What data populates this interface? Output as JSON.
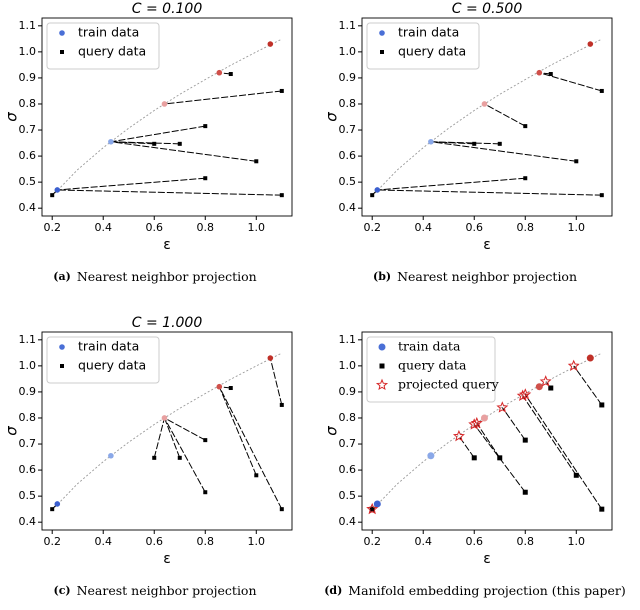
{
  "chart_data": [
    {
      "type": "scatter",
      "title": "C = 0.100",
      "panel": "(a)",
      "caption": "Nearest neighbor projection",
      "x_label": "ε",
      "y_label": "σ",
      "xlim": [
        0.16,
        1.14
      ],
      "ylim": [
        0.37,
        1.13
      ],
      "xticks": [
        0.2,
        0.4,
        0.6,
        0.8,
        {
          "value": 1,
          "label": "1.0"
        }
      ],
      "yticks": [
        0.4,
        0.5,
        0.6,
        0.7,
        0.8,
        0.9,
        {
          "value": 1,
          "label": "1.0"
        },
        1.1
      ],
      "legend": "upper left",
      "link_series": 0,
      "reference_curve": {
        "color": "#999999",
        "x": [
          0.2,
          0.3,
          0.4,
          0.5,
          0.6,
          0.7,
          0.8,
          0.9,
          1.0,
          1.1
        ],
        "values": [
          0.447,
          0.548,
          0.632,
          0.707,
          0.775,
          0.837,
          0.894,
          0.949,
          1.0,
          1.049
        ]
      },
      "series": [
        {
          "name": "train data",
          "marker": "circle",
          "color": "#4a6fd6",
          "point_colors": [
            "#3b5fcf",
            "#8aa8e8",
            "#e8a0a0",
            "#d0504a",
            "#c03028"
          ],
          "x": [
            0.22,
            0.43,
            0.64,
            0.855,
            1.055
          ],
          "values": [
            0.47,
            0.655,
            0.8,
            0.92,
            1.03
          ]
        },
        {
          "name": "query data",
          "marker": "square",
          "color": "#000000",
          "x": [
            0.2,
            0.6,
            0.7,
            0.8,
            0.8,
            0.9,
            1.0,
            1.1,
            1.1
          ],
          "values": [
            0.45,
            0.647,
            0.647,
            0.715,
            0.515,
            0.915,
            0.58,
            0.85,
            0.45
          ],
          "links": [
            0,
            1,
            1,
            1,
            0,
            3,
            1,
            2,
            0
          ]
        }
      ]
    },
    {
      "type": "scatter",
      "title": "C = 0.500",
      "panel": "(b)",
      "caption": "Nearest neighbor projection",
      "x_label": "ε",
      "y_label": "σ",
      "xlim": [
        0.16,
        1.14
      ],
      "ylim": [
        0.37,
        1.13
      ],
      "xticks": [
        0.2,
        0.4,
        0.6,
        0.8,
        {
          "value": 1,
          "label": "1.0"
        }
      ],
      "yticks": [
        0.4,
        0.5,
        0.6,
        0.7,
        0.8,
        0.9,
        {
          "value": 1,
          "label": "1.0"
        },
        1.1
      ],
      "legend": "upper left",
      "link_series": 0,
      "reference_curve": {
        "color": "#999999",
        "x": [
          0.2,
          0.3,
          0.4,
          0.5,
          0.6,
          0.7,
          0.8,
          0.9,
          1.0,
          1.1
        ],
        "values": [
          0.447,
          0.548,
          0.632,
          0.707,
          0.775,
          0.837,
          0.894,
          0.949,
          1.0,
          1.049
        ]
      },
      "series": [
        {
          "name": "train data",
          "marker": "circle",
          "color": "#4a6fd6",
          "point_colors": [
            "#3b5fcf",
            "#8aa8e8",
            "#e8a0a0",
            "#d0504a",
            "#c03028"
          ],
          "x": [
            0.22,
            0.43,
            0.64,
            0.855,
            1.055
          ],
          "values": [
            0.47,
            0.655,
            0.8,
            0.92,
            1.03
          ]
        },
        {
          "name": "query data",
          "marker": "square",
          "color": "#000000",
          "x": [
            0.2,
            0.6,
            0.7,
            0.8,
            0.8,
            0.9,
            1.0,
            1.1,
            1.1
          ],
          "values": [
            0.45,
            0.647,
            0.647,
            0.715,
            0.515,
            0.915,
            0.58,
            0.85,
            0.45
          ],
          "links": [
            0,
            1,
            1,
            2,
            0,
            3,
            1,
            3,
            0
          ]
        }
      ]
    },
    {
      "type": "scatter",
      "title": "C = 1.000",
      "panel": "(c)",
      "caption": "Nearest neighbor projection",
      "x_label": "ε",
      "y_label": "σ",
      "xlim": [
        0.16,
        1.14
      ],
      "ylim": [
        0.37,
        1.13
      ],
      "xticks": [
        0.2,
        0.4,
        0.6,
        0.8,
        {
          "value": 1,
          "label": "1.0"
        }
      ],
      "yticks": [
        0.4,
        0.5,
        0.6,
        0.7,
        0.8,
        0.9,
        {
          "value": 1,
          "label": "1.0"
        },
        1.1
      ],
      "legend": "upper left",
      "link_series": 0,
      "reference_curve": {
        "color": "#999999",
        "x": [
          0.2,
          0.3,
          0.4,
          0.5,
          0.6,
          0.7,
          0.8,
          0.9,
          1.0,
          1.1
        ],
        "values": [
          0.447,
          0.548,
          0.632,
          0.707,
          0.775,
          0.837,
          0.894,
          0.949,
          1.0,
          1.049
        ]
      },
      "series": [
        {
          "name": "train data",
          "marker": "circle",
          "color": "#4a6fd6",
          "point_colors": [
            "#3b5fcf",
            "#8aa8e8",
            "#e8a0a0",
            "#d0504a",
            "#c03028"
          ],
          "x": [
            0.22,
            0.43,
            0.64,
            0.855,
            1.055
          ],
          "values": [
            0.47,
            0.655,
            0.8,
            0.92,
            1.03
          ]
        },
        {
          "name": "query data",
          "marker": "square",
          "color": "#000000",
          "x": [
            0.2,
            0.6,
            0.7,
            0.8,
            0.8,
            0.9,
            1.0,
            1.1,
            1.1
          ],
          "values": [
            0.45,
            0.647,
            0.647,
            0.715,
            0.515,
            0.915,
            0.58,
            0.85,
            0.45
          ],
          "links": [
            0,
            2,
            2,
            2,
            2,
            3,
            3,
            4,
            3
          ]
        }
      ]
    },
    {
      "type": "scatter",
      "panel": "(d)",
      "caption": "Manifold embedding projection (this paper)",
      "x_label": "ε",
      "y_label": "σ",
      "xlim": [
        0.16,
        1.14
      ],
      "ylim": [
        0.37,
        1.13
      ],
      "xticks": [
        0.2,
        0.4,
        0.6,
        0.8,
        {
          "value": 1,
          "label": "1.0"
        }
      ],
      "yticks": [
        0.4,
        0.5,
        0.6,
        0.7,
        0.8,
        0.9,
        {
          "value": 1,
          "label": "1.0"
        },
        1.1
      ],
      "legend": "upper left",
      "link_series": 2,
      "reference_curve": {
        "color": "#999999",
        "x": [
          0.2,
          0.3,
          0.4,
          0.5,
          0.6,
          0.7,
          0.8,
          0.9,
          1.0,
          1.1
        ],
        "values": [
          0.447,
          0.548,
          0.632,
          0.707,
          0.775,
          0.837,
          0.894,
          0.949,
          1.0,
          1.049
        ]
      },
      "series": [
        {
          "name": "train data",
          "marker": "circle",
          "color": "#4a6fd6",
          "point_colors": [
            "#3b5fcf",
            "#8aa8e8",
            "#e8a0a0",
            "#d0504a",
            "#c03028"
          ],
          "x": [
            0.22,
            0.43,
            0.64,
            0.855,
            1.055
          ],
          "values": [
            0.47,
            0.655,
            0.8,
            0.92,
            1.03
          ]
        },
        {
          "name": "query data",
          "marker": "square",
          "color": "#000000",
          "x": [
            0.2,
            0.6,
            0.7,
            0.8,
            0.8,
            0.9,
            1.0,
            1.1,
            1.1
          ],
          "values": [
            0.45,
            0.647,
            0.647,
            0.715,
            0.515,
            0.915,
            0.58,
            0.85,
            0.45
          ],
          "links": [
            0,
            1,
            2,
            3,
            4,
            5,
            6,
            7,
            8
          ]
        },
        {
          "name": "projected query",
          "marker": "star",
          "color": "#d62728",
          "x": [
            0.2,
            0.54,
            0.61,
            0.71,
            0.6,
            0.88,
            0.79,
            0.99,
            0.8
          ],
          "values": [
            0.45,
            0.73,
            0.78,
            0.84,
            0.775,
            0.94,
            0.885,
            1.0,
            0.89
          ]
        }
      ]
    }
  ]
}
